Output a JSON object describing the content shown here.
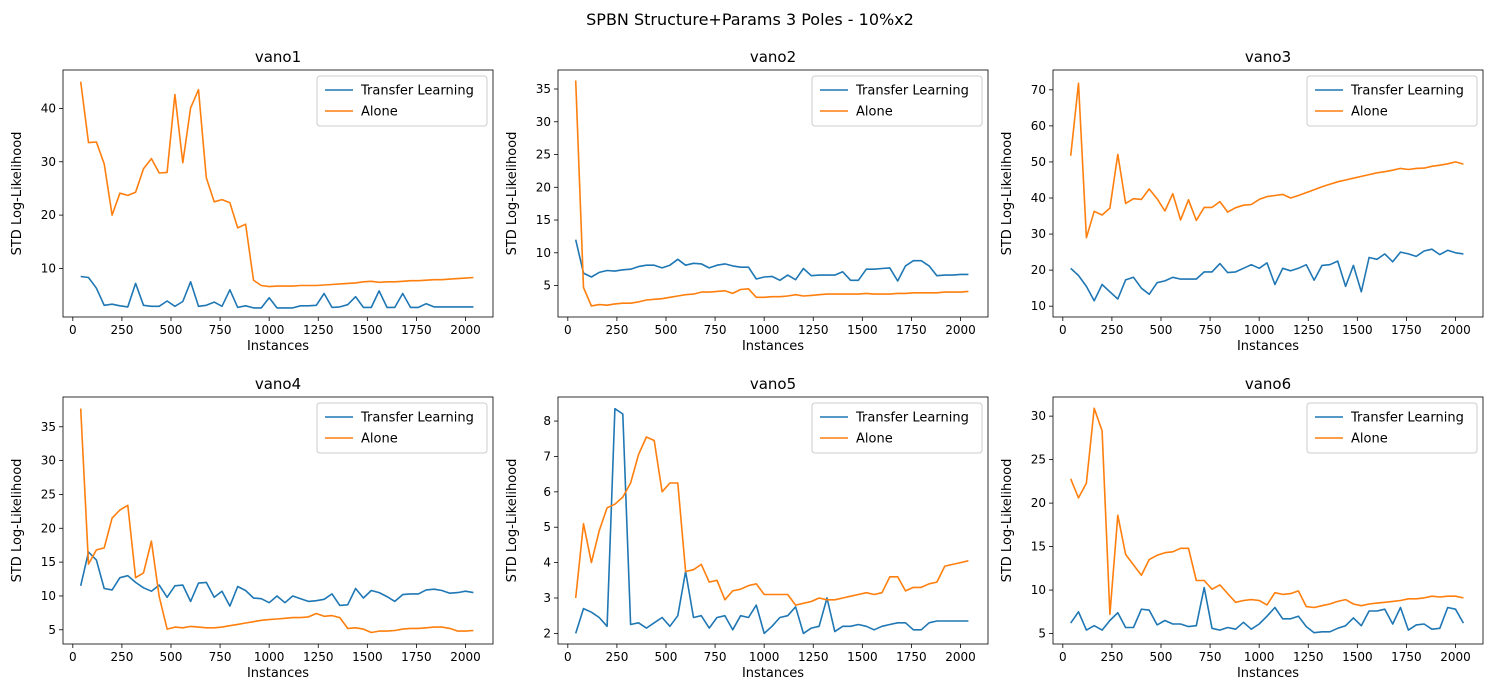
{
  "figure": {
    "suptitle": "SPBN Structure+Params 3 Poles - 10%x2"
  },
  "colors": {
    "transfer": "#1f77b4",
    "alone": "#ff7f0e"
  },
  "chart_data": [
    {
      "type": "line",
      "title": "vano1",
      "xlabel": "Instances",
      "ylabel": "STD Log-Likelihood",
      "xlim": [
        -50,
        2140
      ],
      "ylim": [
        0.9,
        47.2
      ],
      "xticks": [
        0,
        250,
        500,
        750,
        1000,
        1250,
        1500,
        1750,
        2000
      ],
      "yticks": [
        10,
        20,
        30,
        40
      ],
      "legend": "upper right",
      "x": [
        40,
        80,
        120,
        160,
        200,
        240,
        280,
        320,
        360,
        400,
        440,
        480,
        520,
        560,
        600,
        640,
        680,
        720,
        760,
        800,
        840,
        880,
        920,
        960,
        1000,
        1040,
        1080,
        1120,
        1160,
        1200,
        1240,
        1280,
        1320,
        1360,
        1400,
        1440,
        1480,
        1520,
        1560,
        1600,
        1640,
        1680,
        1720,
        1760,
        1800,
        1840,
        1880,
        1920,
        1960,
        2000,
        2040
      ],
      "series": [
        {
          "name": "Transfer Learning",
          "values": [
            8.5,
            8.3,
            6.3,
            3.1,
            3.3,
            3.0,
            2.8,
            7.2,
            3.1,
            2.9,
            2.9,
            3.9,
            2.9,
            3.8,
            7.5,
            2.9,
            3.1,
            3.7,
            2.9,
            6.0,
            2.7,
            3.0,
            2.6,
            2.6,
            4.5,
            2.6,
            2.6,
            2.6,
            3.0,
            3.0,
            3.1,
            5.3,
            2.7,
            2.8,
            3.2,
            4.7,
            2.7,
            2.7,
            5.8,
            2.7,
            2.7,
            5.3,
            2.7,
            2.7,
            3.4,
            2.8,
            2.8,
            2.8,
            2.8,
            2.8,
            2.8
          ]
        },
        {
          "name": "Alone",
          "values": [
            45.0,
            33.6,
            33.7,
            29.6,
            20.0,
            24.1,
            23.7,
            24.3,
            28.7,
            30.6,
            27.9,
            28.0,
            42.6,
            29.8,
            40.1,
            43.5,
            27.0,
            22.5,
            22.9,
            22.3,
            17.6,
            18.3,
            7.8,
            6.8,
            6.6,
            6.7,
            6.7,
            6.7,
            6.8,
            6.8,
            6.8,
            6.9,
            7.0,
            7.1,
            7.2,
            7.3,
            7.5,
            7.6,
            7.4,
            7.5,
            7.5,
            7.6,
            7.7,
            7.7,
            7.8,
            7.9,
            7.9,
            8.0,
            8.1,
            8.2,
            8.3
          ]
        }
      ]
    },
    {
      "type": "line",
      "title": "vano2",
      "xlabel": "Instances",
      "ylabel": "STD Log-Likelihood",
      "xlim": [
        -50,
        2140
      ],
      "ylim": [
        0.2,
        37.9
      ],
      "xticks": [
        0,
        250,
        500,
        750,
        1000,
        1250,
        1500,
        1750,
        2000
      ],
      "yticks": [
        5,
        10,
        15,
        20,
        25,
        30,
        35
      ],
      "legend": "upper right",
      "x": [
        40,
        80,
        120,
        160,
        200,
        240,
        280,
        320,
        360,
        400,
        440,
        480,
        520,
        560,
        600,
        640,
        680,
        720,
        760,
        800,
        840,
        880,
        920,
        960,
        1000,
        1040,
        1080,
        1120,
        1160,
        1200,
        1240,
        1280,
        1320,
        1360,
        1400,
        1440,
        1480,
        1520,
        1560,
        1600,
        1640,
        1680,
        1720,
        1760,
        1800,
        1840,
        1880,
        1920,
        1960,
        2000,
        2040
      ],
      "series": [
        {
          "name": "Transfer Learning",
          "values": [
            12.0,
            6.9,
            6.3,
            7.0,
            7.3,
            7.2,
            7.4,
            7.5,
            7.9,
            8.1,
            8.1,
            7.7,
            8.1,
            9.0,
            8.1,
            8.4,
            8.3,
            7.7,
            8.1,
            8.3,
            8.0,
            7.8,
            7.8,
            6.0,
            6.3,
            6.4,
            5.8,
            6.6,
            5.9,
            7.6,
            6.5,
            6.6,
            6.6,
            6.6,
            7.1,
            5.8,
            5.8,
            7.5,
            7.5,
            7.6,
            7.7,
            5.7,
            8.0,
            8.8,
            8.8,
            8.0,
            6.5,
            6.6,
            6.6,
            6.7,
            6.7
          ]
        },
        {
          "name": "Alone",
          "values": [
            36.3,
            4.7,
            1.9,
            2.1,
            2.0,
            2.2,
            2.3,
            2.3,
            2.5,
            2.8,
            2.9,
            3.0,
            3.2,
            3.4,
            3.6,
            3.7,
            4.0,
            4.0,
            4.1,
            4.2,
            3.8,
            4.4,
            4.5,
            3.2,
            3.2,
            3.3,
            3.3,
            3.4,
            3.6,
            3.4,
            3.5,
            3.6,
            3.7,
            3.7,
            3.7,
            3.7,
            3.7,
            3.8,
            3.7,
            3.7,
            3.7,
            3.8,
            3.8,
            3.9,
            3.9,
            3.9,
            3.9,
            4.0,
            4.0,
            4.0,
            4.1
          ]
        }
      ]
    },
    {
      "type": "line",
      "title": "vano3",
      "xlabel": "Instances",
      "ylabel": "STD Log-Likelihood",
      "xlim": [
        -50,
        2140
      ],
      "ylim": [
        7.0,
        75.5
      ],
      "xticks": [
        0,
        250,
        500,
        750,
        1000,
        1250,
        1500,
        1750,
        2000
      ],
      "yticks": [
        10,
        20,
        30,
        40,
        50,
        60,
        70
      ],
      "legend": "upper right",
      "x": [
        40,
        80,
        120,
        160,
        200,
        240,
        280,
        320,
        360,
        400,
        440,
        480,
        520,
        560,
        600,
        640,
        680,
        720,
        760,
        800,
        840,
        880,
        920,
        960,
        1000,
        1040,
        1080,
        1120,
        1160,
        1200,
        1240,
        1280,
        1320,
        1360,
        1400,
        1440,
        1480,
        1520,
        1560,
        1600,
        1640,
        1680,
        1720,
        1760,
        1800,
        1840,
        1880,
        1920,
        1960,
        2000,
        2040
      ],
      "series": [
        {
          "name": "Transfer Learning",
          "values": [
            20.5,
            18.5,
            15.5,
            11.5,
            16.0,
            14.0,
            12.0,
            17.3,
            18.0,
            15.0,
            13.3,
            16.5,
            17.0,
            18.0,
            17.5,
            17.5,
            17.5,
            19.5,
            19.5,
            21.8,
            19.3,
            19.5,
            20.5,
            21.5,
            20.5,
            22.0,
            16.0,
            20.5,
            19.8,
            20.5,
            21.5,
            17.2,
            21.3,
            21.5,
            22.5,
            15.5,
            21.3,
            14.0,
            23.5,
            23.0,
            24.5,
            22.3,
            25.0,
            24.5,
            23.8,
            25.3,
            25.8,
            24.3,
            25.5,
            24.8,
            24.5
          ]
        },
        {
          "name": "Alone",
          "values": [
            51.7,
            71.8,
            29.0,
            36.3,
            35.3,
            37.2,
            52.1,
            38.5,
            39.8,
            39.6,
            42.5,
            39.8,
            36.4,
            41.2,
            33.9,
            39.5,
            33.8,
            37.4,
            37.4,
            39.0,
            36.1,
            37.3,
            38.0,
            38.2,
            39.6,
            40.4,
            40.7,
            41.0,
            40.0,
            40.7,
            41.5,
            42.3,
            43.1,
            43.8,
            44.5,
            45.0,
            45.5,
            46.0,
            46.5,
            47.0,
            47.3,
            47.7,
            48.2,
            47.9,
            48.2,
            48.3,
            48.8,
            49.1,
            49.5,
            50.0,
            49.4
          ]
        }
      ]
    },
    {
      "type": "line",
      "title": "vano4",
      "xlabel": "Instances",
      "ylabel": "STD Log-Likelihood",
      "xlim": [
        -50,
        2140
      ],
      "ylim": [
        2.9,
        39.4
      ],
      "xticks": [
        0,
        250,
        500,
        750,
        1000,
        1250,
        1500,
        1750,
        2000
      ],
      "yticks": [
        5,
        10,
        15,
        20,
        25,
        30,
        35
      ],
      "legend": "upper right",
      "x": [
        40,
        80,
        120,
        160,
        200,
        240,
        280,
        320,
        360,
        400,
        440,
        480,
        520,
        560,
        600,
        640,
        680,
        720,
        760,
        800,
        840,
        880,
        920,
        960,
        1000,
        1040,
        1080,
        1120,
        1160,
        1200,
        1240,
        1280,
        1320,
        1360,
        1400,
        1440,
        1480,
        1520,
        1560,
        1600,
        1640,
        1680,
        1720,
        1760,
        1800,
        1840,
        1880,
        1920,
        1960,
        2000,
        2040
      ],
      "series": [
        {
          "name": "Transfer Learning",
          "values": [
            11.5,
            16.5,
            15.3,
            11.1,
            10.9,
            12.7,
            13.0,
            12.0,
            11.2,
            10.7,
            11.6,
            9.8,
            11.5,
            11.6,
            9.2,
            11.9,
            12.0,
            9.8,
            10.7,
            8.5,
            11.4,
            10.8,
            9.7,
            9.6,
            9.0,
            10.0,
            9.0,
            10.0,
            9.6,
            9.2,
            9.3,
            9.5,
            10.3,
            8.6,
            8.7,
            11.1,
            9.7,
            10.8,
            10.5,
            9.9,
            9.2,
            10.2,
            10.3,
            10.3,
            10.9,
            11.0,
            10.8,
            10.4,
            10.5,
            10.7,
            10.5
          ]
        },
        {
          "name": "Alone",
          "values": [
            37.7,
            14.7,
            16.8,
            17.1,
            21.5,
            22.7,
            23.4,
            12.7,
            13.4,
            18.1,
            9.9,
            5.1,
            5.4,
            5.3,
            5.5,
            5.4,
            5.3,
            5.3,
            5.4,
            5.6,
            5.8,
            6.0,
            6.2,
            6.4,
            6.5,
            6.6,
            6.7,
            6.8,
            6.8,
            6.9,
            7.4,
            7.0,
            7.1,
            6.8,
            5.2,
            5.3,
            5.1,
            4.6,
            4.8,
            4.8,
            4.9,
            5.1,
            5.2,
            5.2,
            5.3,
            5.4,
            5.4,
            5.2,
            4.8,
            4.8,
            4.9
          ]
        }
      ]
    },
    {
      "type": "line",
      "title": "vano5",
      "xlabel": "Instances",
      "ylabel": "STD Log-Likelihood",
      "xlim": [
        -50,
        2140
      ],
      "ylim": [
        1.7,
        8.68
      ],
      "xticks": [
        0,
        250,
        500,
        750,
        1000,
        1250,
        1500,
        1750,
        2000
      ],
      "yticks": [
        2,
        3,
        4,
        5,
        6,
        7,
        8
      ],
      "legend": "upper right",
      "x": [
        40,
        80,
        120,
        160,
        200,
        240,
        280,
        320,
        360,
        400,
        440,
        480,
        520,
        560,
        600,
        640,
        680,
        720,
        760,
        800,
        840,
        880,
        920,
        960,
        1000,
        1040,
        1080,
        1120,
        1160,
        1200,
        1240,
        1280,
        1320,
        1360,
        1400,
        1440,
        1480,
        1520,
        1560,
        1600,
        1640,
        1680,
        1720,
        1760,
        1800,
        1840,
        1880,
        1920,
        1960,
        2000,
        2040
      ],
      "series": [
        {
          "name": "Transfer Learning",
          "values": [
            2.0,
            2.7,
            2.6,
            2.45,
            2.2,
            8.35,
            8.2,
            2.25,
            2.3,
            2.15,
            2.3,
            2.45,
            2.2,
            2.5,
            3.75,
            2.45,
            2.5,
            2.15,
            2.45,
            2.5,
            2.1,
            2.5,
            2.45,
            2.8,
            2.0,
            2.2,
            2.45,
            2.5,
            2.75,
            2.0,
            2.15,
            2.2,
            3.0,
            2.05,
            2.2,
            2.2,
            2.25,
            2.2,
            2.1,
            2.2,
            2.25,
            2.3,
            2.3,
            2.1,
            2.1,
            2.3,
            2.35,
            2.35,
            2.35,
            2.35,
            2.35
          ]
        },
        {
          "name": "Alone",
          "values": [
            3.0,
            5.1,
            4.0,
            4.9,
            5.55,
            5.65,
            5.85,
            6.25,
            7.05,
            7.55,
            7.45,
            6.0,
            6.25,
            6.25,
            3.75,
            3.8,
            3.95,
            3.45,
            3.5,
            2.95,
            3.2,
            3.25,
            3.35,
            3.4,
            3.1,
            3.1,
            3.1,
            3.1,
            2.8,
            2.85,
            2.9,
            3.0,
            2.95,
            2.95,
            3.0,
            3.05,
            3.1,
            3.15,
            3.1,
            3.15,
            3.6,
            3.6,
            3.2,
            3.3,
            3.3,
            3.4,
            3.45,
            3.9,
            3.95,
            4.0,
            4.05
          ]
        }
      ]
    },
    {
      "type": "line",
      "title": "vano6",
      "xlabel": "Instances",
      "ylabel": "STD Log-Likelihood",
      "xlim": [
        -50,
        2140
      ],
      "ylim": [
        3.8,
        32.2
      ],
      "xticks": [
        0,
        250,
        500,
        750,
        1000,
        1250,
        1500,
        1750,
        2000
      ],
      "yticks": [
        5,
        10,
        15,
        20,
        25,
        30
      ],
      "legend": "upper right",
      "x": [
        40,
        80,
        120,
        160,
        200,
        240,
        280,
        320,
        360,
        400,
        440,
        480,
        520,
        560,
        600,
        640,
        680,
        720,
        760,
        800,
        840,
        880,
        920,
        960,
        1000,
        1040,
        1080,
        1120,
        1160,
        1200,
        1240,
        1280,
        1320,
        1360,
        1400,
        1440,
        1480,
        1520,
        1560,
        1600,
        1640,
        1680,
        1720,
        1760,
        1800,
        1840,
        1880,
        1920,
        1960,
        2000,
        2040
      ],
      "series": [
        {
          "name": "Transfer Learning",
          "values": [
            6.2,
            7.5,
            5.4,
            5.9,
            5.4,
            6.5,
            7.4,
            5.7,
            5.7,
            7.8,
            7.7,
            6.0,
            6.5,
            6.1,
            6.1,
            5.8,
            5.9,
            10.3,
            5.6,
            5.4,
            5.7,
            5.5,
            6.3,
            5.5,
            6.1,
            7.0,
            8.0,
            6.7,
            6.7,
            7.0,
            5.8,
            5.1,
            5.2,
            5.2,
            5.6,
            5.9,
            6.8,
            5.9,
            7.6,
            7.6,
            7.8,
            6.1,
            8.0,
            5.4,
            6.0,
            6.1,
            5.5,
            5.6,
            8.0,
            7.8,
            6.2
          ]
        },
        {
          "name": "Alone",
          "values": [
            22.8,
            20.6,
            22.3,
            30.9,
            28.3,
            7.2,
            18.6,
            14.1,
            12.9,
            11.7,
            13.5,
            14.0,
            14.3,
            14.4,
            14.8,
            14.8,
            11.1,
            11.1,
            10.1,
            10.6,
            9.6,
            8.6,
            8.8,
            8.9,
            8.8,
            8.3,
            9.7,
            9.5,
            9.6,
            9.9,
            8.1,
            8.0,
            8.2,
            8.4,
            8.7,
            8.9,
            8.4,
            8.2,
            8.4,
            8.5,
            8.6,
            8.7,
            8.8,
            9.0,
            9.0,
            9.1,
            9.3,
            9.2,
            9.3,
            9.3,
            9.1
          ]
        }
      ]
    }
  ]
}
